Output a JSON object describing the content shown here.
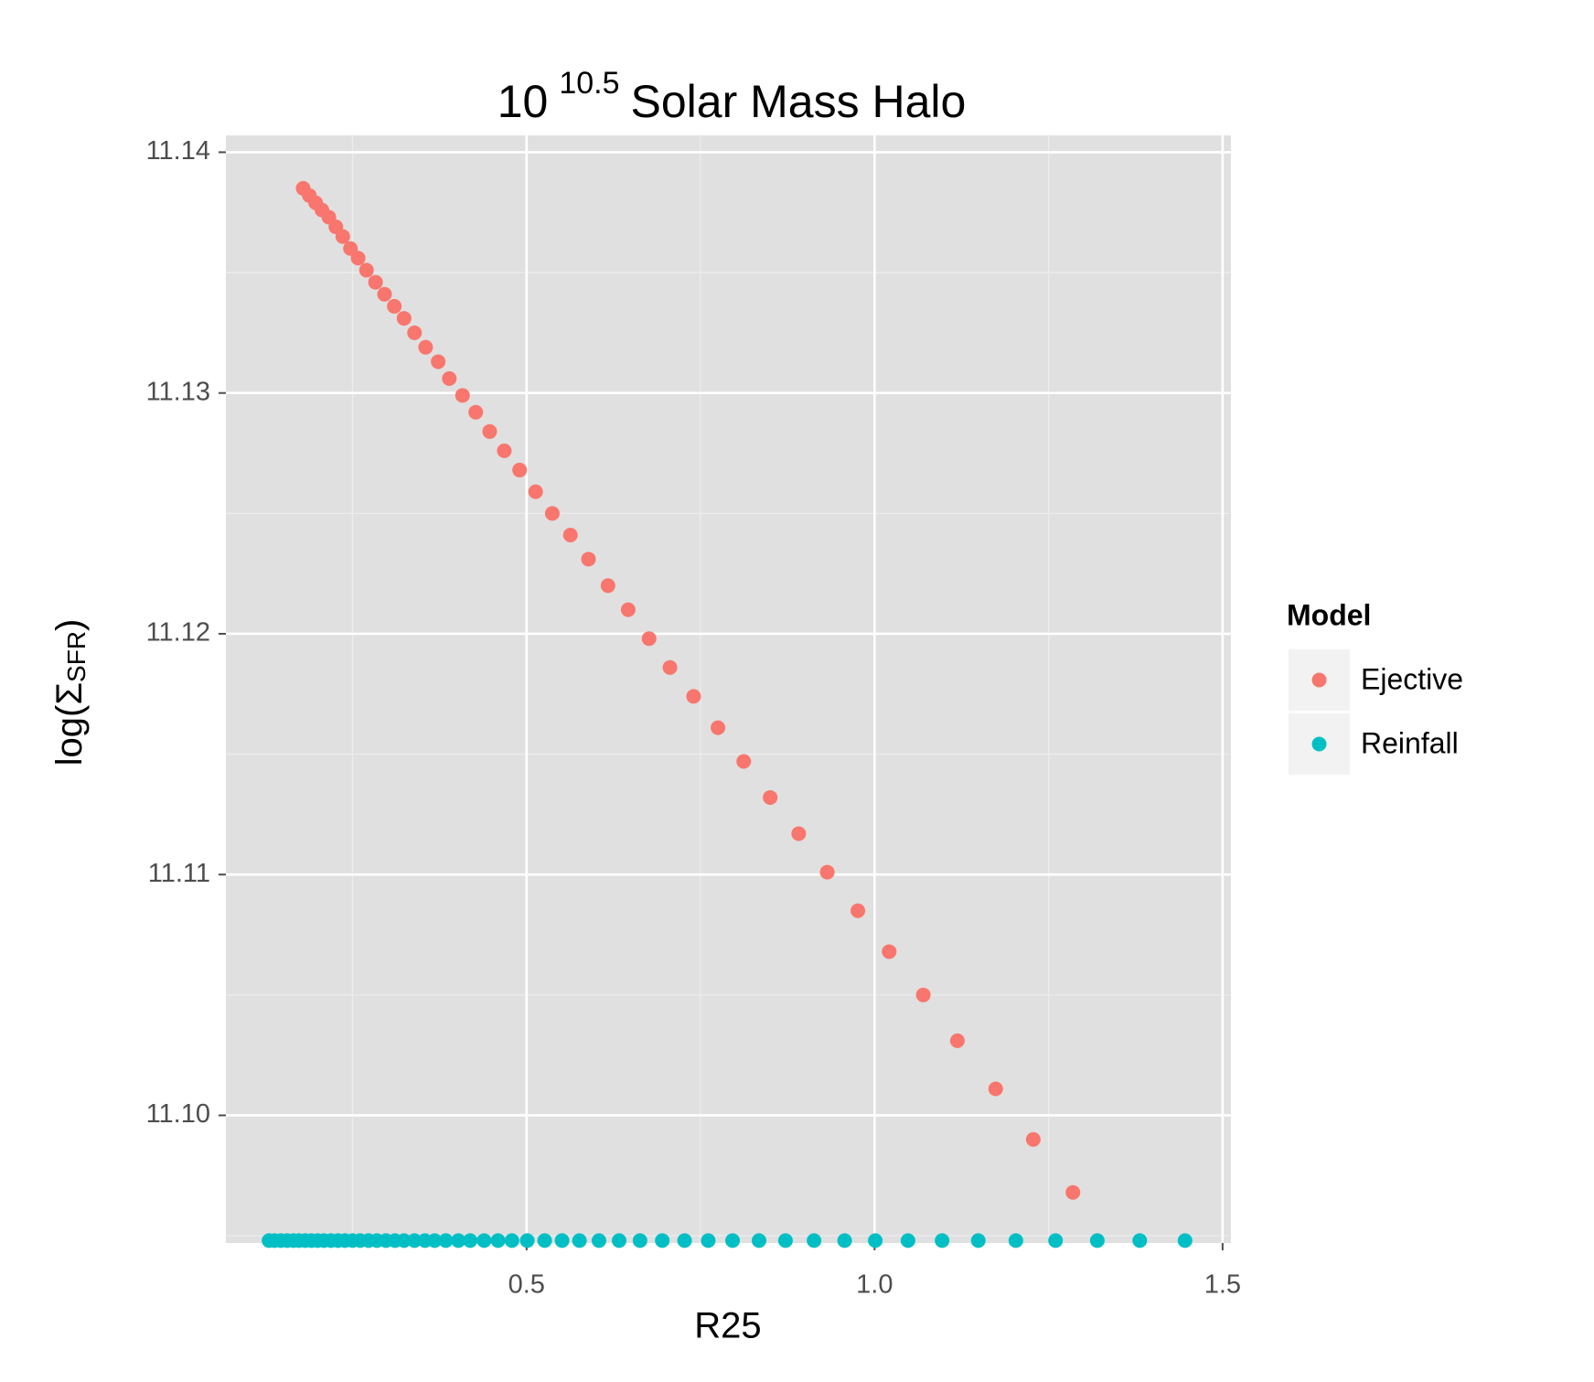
{
  "chart_data": {
    "type": "scatter",
    "title": "10",
    "title_superscript": "10.5",
    "title_rest": "Solar Mass Halo",
    "xlabel": "R25",
    "ylabel": "log(Σ",
    "ylabel_subscript": "SFR",
    "ylabel_close": ")",
    "xlim": [
      0.068,
      1.512
    ],
    "ylim": [
      11.0947,
      11.1407
    ],
    "xticks": [
      0.5,
      {
        "value": 1,
        "label": "1.0"
      },
      1.5
    ],
    "yticks": [
      {
        "value": 11.1,
        "label": "11.10"
      },
      11.11,
      11.12,
      11.13,
      11.14
    ],
    "minor_xticks": [
      0.25,
      0.75,
      1.25
    ],
    "minor_yticks": [
      11.095,
      11.105,
      11.115,
      11.125,
      11.135
    ],
    "grid": true,
    "legend_title": "Model",
    "legend_position": "right",
    "series": [
      {
        "name": "Ejective",
        "color": "#F8766D",
        "x": [
          0.179,
          0.188,
          0.197,
          0.206,
          0.216,
          0.226,
          0.236,
          0.247,
          0.258,
          0.27,
          0.283,
          0.296,
          0.31,
          0.324,
          0.339,
          0.355,
          0.373,
          0.389,
          0.408,
          0.427,
          0.447,
          0.468,
          0.49,
          0.513,
          0.537,
          0.563,
          0.589,
          0.617,
          0.646,
          0.676,
          0.706,
          0.74,
          0.775,
          0.812,
          0.85,
          0.891,
          0.932,
          0.976,
          1.021,
          1.07,
          1.119,
          1.174,
          1.228,
          1.285
        ],
        "values": [
          11.1385,
          11.1382,
          11.1379,
          11.1376,
          11.1373,
          11.1369,
          11.1365,
          11.136,
          11.1356,
          11.1351,
          11.1346,
          11.1341,
          11.1336,
          11.1331,
          11.1325,
          11.1319,
          11.1313,
          11.1306,
          11.1299,
          11.1292,
          11.1284,
          11.1276,
          11.1268,
          11.1259,
          11.125,
          11.1241,
          11.1231,
          11.122,
          11.121,
          11.1198,
          11.1186,
          11.1174,
          11.1161,
          11.1147,
          11.1132,
          11.1117,
          11.1101,
          11.1085,
          11.1068,
          11.105,
          11.1031,
          11.1011,
          11.099,
          11.0968
        ]
      },
      {
        "name": "Reinfall",
        "color": "#00BFC4",
        "x": [
          0.13,
          0.138,
          0.147,
          0.156,
          0.165,
          0.173,
          0.182,
          0.191,
          0.2,
          0.209,
          0.219,
          0.229,
          0.239,
          0.25,
          0.261,
          0.273,
          0.285,
          0.298,
          0.311,
          0.324,
          0.339,
          0.354,
          0.368,
          0.384,
          0.402,
          0.419,
          0.439,
          0.459,
          0.479,
          0.501,
          0.526,
          0.551,
          0.576,
          0.604,
          0.633,
          0.663,
          0.695,
          0.727,
          0.761,
          0.796,
          0.834,
          0.872,
          0.913,
          0.957,
          1.001,
          1.048,
          1.097,
          1.149,
          1.203,
          1.26,
          1.32,
          1.381,
          1.446
        ],
        "values": [
          11.0948,
          11.0948,
          11.0948,
          11.0948,
          11.0948,
          11.0948,
          11.0948,
          11.0948,
          11.0948,
          11.0948,
          11.0948,
          11.0948,
          11.0948,
          11.0948,
          11.0948,
          11.0948,
          11.0948,
          11.0948,
          11.0948,
          11.0948,
          11.0948,
          11.0948,
          11.0948,
          11.0948,
          11.0948,
          11.0948,
          11.0948,
          11.0948,
          11.0948,
          11.0948,
          11.0948,
          11.0948,
          11.0948,
          11.0948,
          11.0948,
          11.0948,
          11.0948,
          11.0948,
          11.0948,
          11.0948,
          11.0948,
          11.0948,
          11.0948,
          11.0948,
          11.0948,
          11.0948,
          11.0948,
          11.0948,
          11.0948,
          11.0948,
          11.0948,
          11.0948,
          11.0948
        ]
      }
    ]
  }
}
